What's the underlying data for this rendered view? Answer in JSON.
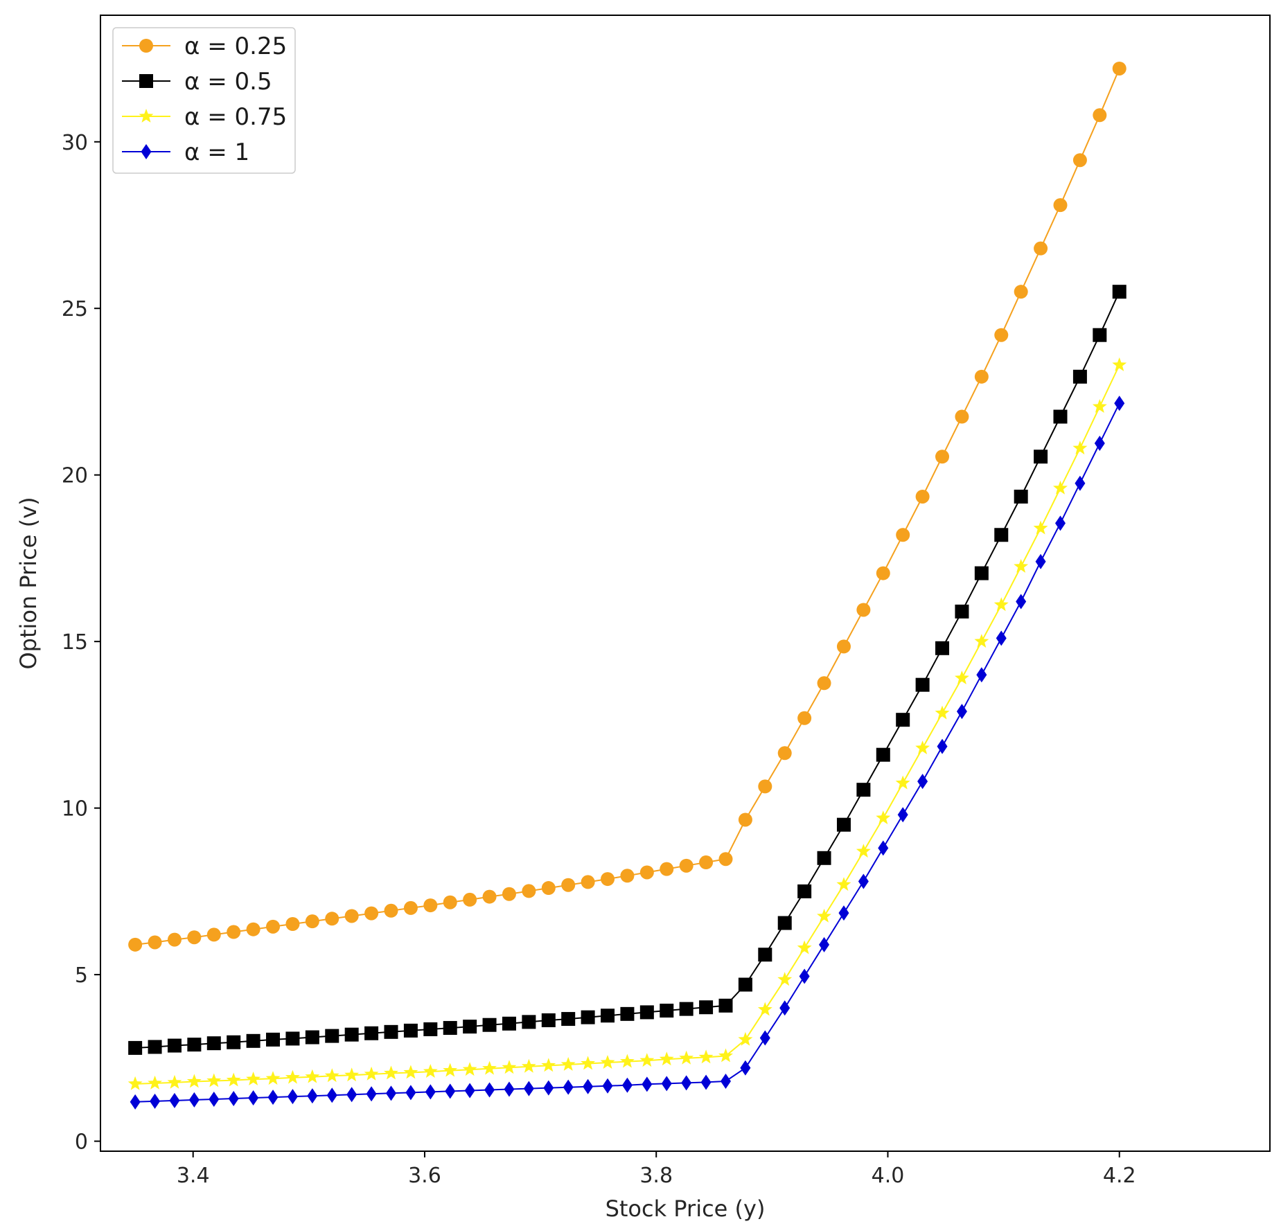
{
  "chart_data": {
    "type": "line",
    "title": "",
    "xlabel": "Stock Price (y)",
    "ylabel": "Option Price (v)",
    "xlim": [
      3.32,
      4.33
    ],
    "ylim": [
      -0.3,
      33.8
    ],
    "x_ticks": [
      3.4,
      3.6,
      3.8,
      4.0,
      4.2
    ],
    "x_tick_labels": [
      "3.4",
      "3.6",
      "3.8",
      "4.0",
      "4.2"
    ],
    "y_ticks": [
      0,
      5,
      10,
      15,
      20,
      25,
      30
    ],
    "y_tick_labels": [
      "0",
      "5",
      "10",
      "15",
      "20",
      "25",
      "30"
    ],
    "grid": false,
    "legend_position": "top-left",
    "x": [
      3.35,
      3.367,
      3.384,
      3.401,
      3.418,
      3.435,
      3.452,
      3.469,
      3.486,
      3.503,
      3.52,
      3.537,
      3.554,
      3.571,
      3.588,
      3.605,
      3.622,
      3.639,
      3.656,
      3.673,
      3.69,
      3.707,
      3.724,
      3.741,
      3.758,
      3.775,
      3.792,
      3.809,
      3.826,
      3.843,
      3.86,
      3.877,
      3.894,
      3.911,
      3.928,
      3.945,
      3.962,
      3.979,
      3.996,
      4.013,
      4.03,
      4.047,
      4.064,
      4.081,
      4.098,
      4.115,
      4.132,
      4.149,
      4.166,
      4.183,
      4.2
    ],
    "series": [
      {
        "name": "α = 0.25",
        "color": "#f5a11e",
        "marker": "circle",
        "values": [
          5.9,
          5.97,
          6.05,
          6.12,
          6.2,
          6.28,
          6.36,
          6.44,
          6.52,
          6.6,
          6.68,
          6.76,
          6.84,
          6.92,
          7.0,
          7.08,
          7.17,
          7.25,
          7.34,
          7.42,
          7.51,
          7.6,
          7.69,
          7.78,
          7.87,
          7.97,
          8.07,
          8.17,
          8.27,
          8.37,
          8.47,
          9.65,
          10.65,
          11.65,
          12.7,
          13.75,
          14.85,
          15.95,
          17.05,
          18.2,
          19.35,
          20.55,
          21.75,
          22.95,
          24.2,
          25.5,
          26.8,
          28.1,
          29.45,
          30.8,
          32.2
        ]
      },
      {
        "name": "α = 0.5",
        "color": "#000000",
        "marker": "square",
        "values": [
          2.8,
          2.83,
          2.87,
          2.9,
          2.94,
          2.97,
          3.01,
          3.05,
          3.08,
          3.12,
          3.16,
          3.2,
          3.24,
          3.28,
          3.32,
          3.36,
          3.4,
          3.44,
          3.49,
          3.53,
          3.58,
          3.63,
          3.67,
          3.72,
          3.77,
          3.82,
          3.87,
          3.92,
          3.97,
          4.02,
          4.07,
          4.7,
          5.6,
          6.55,
          7.5,
          8.5,
          9.5,
          10.55,
          11.6,
          12.65,
          13.7,
          14.8,
          15.9,
          17.05,
          18.2,
          19.35,
          20.55,
          21.75,
          22.95,
          24.2,
          25.5
        ]
      },
      {
        "name": "α = 0.75",
        "color": "#fff21a",
        "marker": "star",
        "values": [
          1.72,
          1.74,
          1.76,
          1.79,
          1.81,
          1.83,
          1.86,
          1.88,
          1.91,
          1.93,
          1.96,
          1.98,
          2.01,
          2.04,
          2.06,
          2.09,
          2.12,
          2.15,
          2.18,
          2.21,
          2.24,
          2.27,
          2.3,
          2.33,
          2.36,
          2.39,
          2.42,
          2.46,
          2.49,
          2.52,
          2.56,
          3.05,
          3.95,
          4.85,
          5.8,
          6.75,
          7.7,
          8.7,
          9.7,
          10.75,
          11.8,
          12.85,
          13.9,
          15.0,
          16.1,
          17.25,
          18.4,
          19.6,
          20.8,
          22.05,
          23.3
        ]
      },
      {
        "name": "α = 1",
        "color": "#0000d6",
        "marker": "diamond",
        "values": [
          1.18,
          1.2,
          1.22,
          1.24,
          1.26,
          1.28,
          1.3,
          1.32,
          1.34,
          1.36,
          1.38,
          1.4,
          1.42,
          1.44,
          1.46,
          1.48,
          1.5,
          1.52,
          1.54,
          1.56,
          1.58,
          1.6,
          1.62,
          1.64,
          1.66,
          1.68,
          1.71,
          1.73,
          1.75,
          1.77,
          1.8,
          2.2,
          3.1,
          4.0,
          4.95,
          5.9,
          6.85,
          7.8,
          8.8,
          9.8,
          10.8,
          11.85,
          12.9,
          14.0,
          15.1,
          16.2,
          17.4,
          18.55,
          19.75,
          20.95,
          22.15
        ]
      }
    ]
  }
}
